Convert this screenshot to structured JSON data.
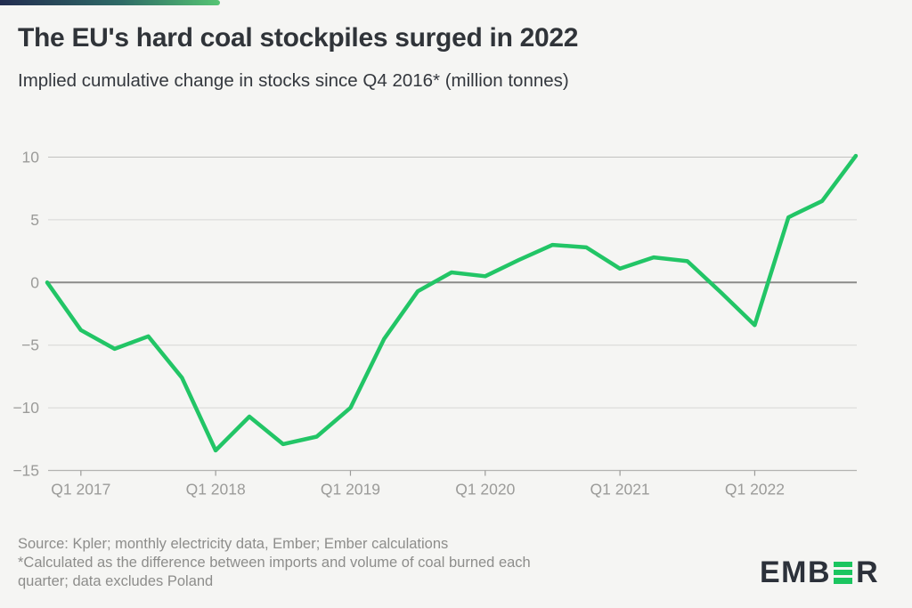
{
  "page": {
    "background": "#f5f5f3"
  },
  "header": {
    "title": "The EU's hard coal stockpiles surged in 2022",
    "subtitle": "Implied cumulative change in stocks since Q4 2016* (million tonnes)"
  },
  "brand": {
    "gradient_start": "#222c4f",
    "gradient_mid": "#2e6a66",
    "gradient_end": "#55c573",
    "logo_text_emb": "EMB",
    "logo_text_r": "R",
    "logo_green": "#1bc55f",
    "logo_dark": "#2c313a"
  },
  "footer": {
    "lines": [
      "Source: Kpler; monthly electricity data, Ember; Ember calculations",
      "*Calculated as the difference between imports and volume of coal burned each",
      "quarter; data excludes Poland"
    ]
  },
  "chart_data": {
    "type": "line",
    "title": "The EU's hard coal stockpiles surged in 2022",
    "subtitle": "Implied cumulative change in stocks since Q4 2016* (million tonnes)",
    "xlabel": "",
    "ylabel": "million tonnes",
    "x": [
      "Q4 2016",
      "Q1 2017",
      "Q2 2017",
      "Q3 2017",
      "Q4 2017",
      "Q1 2018",
      "Q2 2018",
      "Q3 2018",
      "Q4 2018",
      "Q1 2019",
      "Q2 2019",
      "Q3 2019",
      "Q4 2019",
      "Q1 2020",
      "Q2 2020",
      "Q3 2020",
      "Q4 2020",
      "Q1 2021",
      "Q2 2021",
      "Q3 2021",
      "Q4 2021",
      "Q1 2022",
      "Q2 2022",
      "Q3 2022",
      "Q4 2022"
    ],
    "values": [
      0,
      -3.8,
      -5.3,
      -4.3,
      -7.6,
      -13.4,
      -10.7,
      -12.9,
      -12.3,
      -10,
      -4.5,
      -0.7,
      0.8,
      0.5,
      1.8,
      3,
      2.8,
      1.1,
      2,
      1.7,
      -0.8,
      -3.4,
      5.2,
      6.5,
      10.1
    ],
    "ylim": [
      -15,
      10
    ],
    "y_ticks": [
      10,
      5,
      0,
      -5,
      -10,
      -15
    ],
    "y_tick_labels": [
      "10",
      "5",
      "0",
      "−5",
      "−10",
      "−15"
    ],
    "x_tick_indices": [
      1,
      5,
      9,
      13,
      17,
      21
    ],
    "x_tick_labels": [
      "Q1 2017",
      "Q1 2018",
      "Q1 2019",
      "Q1 2020",
      "Q1 2021",
      "Q1 2022"
    ],
    "grid": "horizontal",
    "legend": "none",
    "line_color": "#22c566",
    "axis_label_color": "#9b9b99",
    "gridline_colors": [
      "#c1c1bf",
      "#d8d8d6",
      "#8b8b89",
      "#d6d6d4",
      "#d6d6d4",
      "#b3b3b1"
    ],
    "gridline_widths": [
      1,
      1,
      2,
      1,
      1,
      1.2
    ]
  }
}
